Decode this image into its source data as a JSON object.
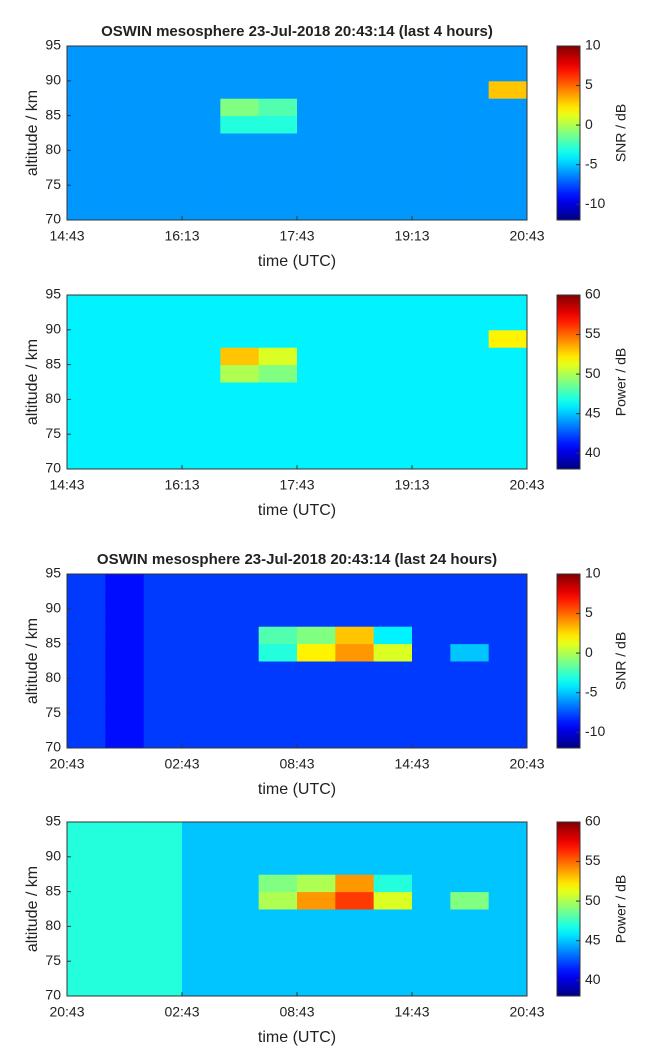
{
  "chart_data": [
    {
      "type": "heatmap",
      "title": "OSWIN mesosphere 23-Jul-2018 20:43:14 (last 4 hours)",
      "xlabel": "time (UTC)",
      "ylabel": "altitude / km",
      "colorbar_label": "SNR / dB",
      "colormap": "jet",
      "xlim": [
        0,
        360
      ],
      "xticks": [
        {
          "value": 0,
          "label": "14:43"
        },
        {
          "value": 90,
          "label": "16:13"
        },
        {
          "value": 180,
          "label": "17:43"
        },
        {
          "value": 270,
          "label": "19:13"
        },
        {
          "value": 360,
          "label": "20:43"
        }
      ],
      "ylim": [
        70,
        95
      ],
      "yticks": [
        70,
        75,
        80,
        85,
        90,
        95
      ],
      "clim": [
        -12,
        10
      ],
      "cticks": [
        -10,
        -5,
        0,
        5,
        10
      ],
      "x_bins": [
        0,
        30,
        60,
        90,
        120,
        150,
        180,
        210,
        240,
        270,
        300,
        330,
        360
      ],
      "y_bins": [
        70,
        72.5,
        75,
        77.5,
        80,
        82.5,
        85,
        87.5,
        90,
        92.5,
        95
      ],
      "z": [
        [
          -6,
          -6,
          -6,
          -6,
          -6,
          -6,
          -6,
          -6,
          -6,
          -6,
          -6,
          -6
        ],
        [
          -6,
          -6,
          -6,
          -6,
          -6,
          -6,
          -6,
          -6,
          -6,
          -6,
          -6,
          -6
        ],
        [
          -6,
          -6,
          -6,
          -6,
          -6,
          -6,
          -6,
          -6,
          -6,
          -6,
          -6,
          -6
        ],
        [
          -6,
          -6,
          -6,
          -6,
          -6,
          -6,
          -6,
          -6,
          -6,
          -6,
          -6,
          -6
        ],
        [
          -6,
          -6,
          -6,
          -6,
          -6,
          -6,
          -6,
          -6,
          -6,
          -6,
          -6,
          -6
        ],
        [
          -6,
          -6,
          -6,
          -6,
          -3,
          -3,
          -6,
          -6,
          -6,
          -6,
          -6,
          -6
        ],
        [
          -6,
          -6,
          -6,
          -6,
          -1,
          -2,
          -6,
          -6,
          -6,
          -6,
          -6,
          -6
        ],
        [
          -6,
          -6,
          -6,
          -6,
          -6,
          -6,
          -6,
          -6,
          -6,
          -6,
          -6,
          3
        ],
        [
          -6,
          -6,
          -6,
          -6,
          -6,
          -6,
          -6,
          -6,
          -6,
          -6,
          -6,
          -6
        ],
        [
          -6,
          -6,
          -6,
          -6,
          -6,
          -6,
          -6,
          -6,
          -6,
          -6,
          -6,
          -6
        ]
      ]
    },
    {
      "type": "heatmap",
      "xlabel": "time (UTC)",
      "ylabel": "altitude / km",
      "colorbar_label": "Power / dB",
      "colormap": "jet",
      "xlim": [
        0,
        360
      ],
      "xticks": [
        {
          "value": 0,
          "label": "14:43"
        },
        {
          "value": 90,
          "label": "16:13"
        },
        {
          "value": 180,
          "label": "17:43"
        },
        {
          "value": 270,
          "label": "19:13"
        },
        {
          "value": 360,
          "label": "20:43"
        }
      ],
      "ylim": [
        70,
        95
      ],
      "yticks": [
        70,
        75,
        80,
        85,
        90,
        95
      ],
      "clim": [
        38,
        60
      ],
      "cticks": [
        40,
        45,
        50,
        55,
        60
      ],
      "x_bins": [
        0,
        30,
        60,
        90,
        120,
        150,
        180,
        210,
        240,
        270,
        300,
        330,
        360
      ],
      "y_bins": [
        70,
        72.5,
        75,
        77.5,
        80,
        82.5,
        85,
        87.5,
        90,
        92.5,
        95
      ],
      "z": [
        [
          46,
          46,
          46,
          46,
          46,
          46,
          46,
          46,
          46,
          46,
          46,
          46
        ],
        [
          46,
          46,
          46,
          46,
          46,
          46,
          46,
          46,
          46,
          46,
          46,
          46
        ],
        [
          46,
          46,
          46,
          46,
          46,
          46,
          46,
          46,
          46,
          46,
          46,
          46
        ],
        [
          46,
          46,
          46,
          46,
          46,
          46,
          46,
          46,
          46,
          46,
          46,
          46
        ],
        [
          46,
          46,
          46,
          46,
          46,
          46,
          46,
          46,
          46,
          46,
          46,
          46
        ],
        [
          46,
          46,
          46,
          46,
          50,
          49,
          46,
          46,
          46,
          46,
          46,
          46
        ],
        [
          46,
          46,
          46,
          46,
          53,
          51,
          46,
          46,
          46,
          46,
          46,
          46
        ],
        [
          46,
          46,
          46,
          46,
          46,
          46,
          46,
          46,
          46,
          46,
          46,
          52
        ],
        [
          46,
          46,
          46,
          46,
          46,
          46,
          46,
          46,
          46,
          46,
          46,
          46
        ],
        [
          46,
          46,
          46,
          46,
          46,
          46,
          46,
          46,
          46,
          46,
          46,
          46
        ]
      ]
    },
    {
      "type": "heatmap",
      "title": "OSWIN mesosphere 23-Jul-2018 20:43:14 (last 24 hours)",
      "xlabel": "time (UTC)",
      "ylabel": "altitude / km",
      "colorbar_label": "SNR / dB",
      "colormap": "jet",
      "xlim": [
        0,
        1440
      ],
      "xticks": [
        {
          "value": 0,
          "label": "20:43"
        },
        {
          "value": 360,
          "label": "02:43"
        },
        {
          "value": 720,
          "label": "08:43"
        },
        {
          "value": 1080,
          "label": "14:43"
        },
        {
          "value": 1440,
          "label": "20:43"
        }
      ],
      "ylim": [
        70,
        95
      ],
      "yticks": [
        70,
        75,
        80,
        85,
        90,
        95
      ],
      "clim": [
        -12,
        10
      ],
      "cticks": [
        -10,
        -5,
        0,
        5,
        10
      ],
      "x_bins": [
        0,
        120,
        240,
        360,
        480,
        600,
        720,
        840,
        960,
        1080,
        1200,
        1320,
        1440
      ],
      "y_bins": [
        70,
        72.5,
        75,
        77.5,
        80,
        82.5,
        85,
        87.5,
        90,
        92.5,
        95
      ],
      "z": [
        [
          -8,
          -9,
          -8,
          -8,
          -8,
          -8,
          -8,
          -8,
          -8,
          -8,
          -8,
          -8
        ],
        [
          -8,
          -9,
          -8,
          -8,
          -8,
          -8,
          -8,
          -8,
          -8,
          -8,
          -8,
          -8
        ],
        [
          -8,
          -9,
          -8,
          -8,
          -8,
          -8,
          -8,
          -8,
          -8,
          -8,
          -8,
          -8
        ],
        [
          -8,
          -9,
          -8,
          -8,
          -8,
          -8,
          -8,
          -8,
          -8,
          -8,
          -8,
          -8
        ],
        [
          -8,
          -9,
          -8,
          -8,
          -8,
          -8,
          -8,
          -8,
          -8,
          -8,
          -8,
          -8
        ],
        [
          -8,
          -9,
          -8,
          -8,
          -8,
          -3,
          2,
          4,
          1,
          -8,
          -5,
          -8
        ],
        [
          -8,
          -9,
          -8,
          -8,
          -8,
          -2,
          -1,
          3,
          -4,
          -8,
          -8,
          -8
        ],
        [
          -8,
          -9,
          -8,
          -8,
          -8,
          -8,
          -8,
          -8,
          -8,
          -8,
          -8,
          -8
        ],
        [
          -8,
          -9,
          -8,
          -8,
          -8,
          -8,
          -8,
          -8,
          -8,
          -8,
          -8,
          -8
        ],
        [
          -8,
          -9,
          -8,
          -8,
          -8,
          -8,
          -8,
          -8,
          -8,
          -8,
          -8,
          -8
        ]
      ]
    },
    {
      "type": "heatmap",
      "xlabel": "time (UTC)",
      "ylabel": "altitude / km",
      "colorbar_label": "Power / dB",
      "colormap": "jet",
      "xlim": [
        0,
        1440
      ],
      "xticks": [
        {
          "value": 0,
          "label": "20:43"
        },
        {
          "value": 360,
          "label": "02:43"
        },
        {
          "value": 720,
          "label": "08:43"
        },
        {
          "value": 1080,
          "label": "14:43"
        },
        {
          "value": 1440,
          "label": "20:43"
        }
      ],
      "ylim": [
        70,
        95
      ],
      "yticks": [
        70,
        75,
        80,
        85,
        90,
        95
      ],
      "clim": [
        38,
        60
      ],
      "cticks": [
        40,
        45,
        50,
        55,
        60
      ],
      "x_bins": [
        0,
        120,
        240,
        360,
        480,
        600,
        720,
        840,
        960,
        1080,
        1200,
        1320,
        1440
      ],
      "y_bins": [
        70,
        72.5,
        75,
        77.5,
        80,
        82.5,
        85,
        87.5,
        90,
        92.5,
        95
      ],
      "z": [
        [
          47,
          47,
          47,
          45,
          45,
          45,
          45,
          45,
          45,
          45,
          45,
          45
        ],
        [
          47,
          47,
          47,
          45,
          45,
          45,
          45,
          45,
          45,
          45,
          45,
          45
        ],
        [
          47,
          47,
          47,
          45,
          45,
          45,
          45,
          45,
          45,
          45,
          45,
          45
        ],
        [
          47,
          47,
          47,
          45,
          45,
          45,
          45,
          45,
          45,
          45,
          45,
          45
        ],
        [
          47,
          47,
          47,
          45,
          45,
          45,
          45,
          45,
          45,
          45,
          45,
          45
        ],
        [
          47,
          47,
          47,
          45,
          45,
          50,
          54,
          56,
          51,
          45,
          49,
          45
        ],
        [
          47,
          47,
          47,
          45,
          45,
          49,
          50,
          54,
          47,
          45,
          45,
          45
        ],
        [
          47,
          47,
          47,
          45,
          45,
          45,
          45,
          45,
          45,
          45,
          45,
          45
        ],
        [
          47,
          47,
          47,
          45,
          45,
          45,
          45,
          45,
          45,
          45,
          45,
          45
        ],
        [
          47,
          47,
          47,
          45,
          45,
          45,
          45,
          45,
          45,
          45,
          45,
          45
        ]
      ]
    }
  ]
}
